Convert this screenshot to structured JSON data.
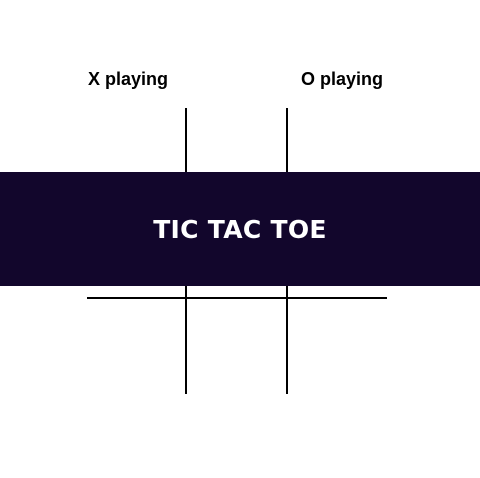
{
  "players": {
    "x_label": "X playing",
    "o_label": "O playing"
  },
  "banner": {
    "title": "TIC TAC TOE",
    "background": "#12062c",
    "text_color": "#ffffff"
  },
  "board": {
    "cells": [
      "",
      "",
      "",
      "",
      "",
      "",
      "",
      "",
      ""
    ],
    "line_color": "#000000"
  }
}
